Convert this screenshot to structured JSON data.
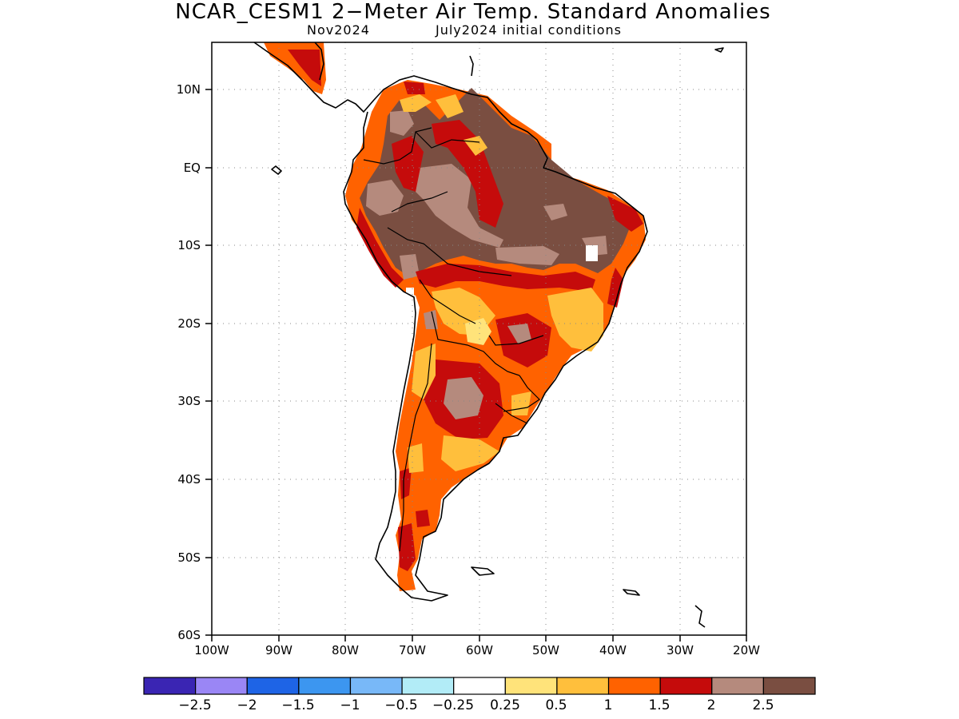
{
  "title": "NCAR_CESM1 2−Meter Air Temp. Standard Anomalies",
  "subtitle_left": "Nov2024",
  "subtitle_right": "July2024 initial conditions",
  "lat_ticks": [
    "10N",
    "EQ",
    "10S",
    "20S",
    "30S",
    "40S",
    "50S",
    "60S"
  ],
  "lon_ticks": [
    "100W",
    "90W",
    "80W",
    "70W",
    "60W",
    "50W",
    "40W",
    "30W",
    "20W"
  ],
  "colorbar": {
    "colors": [
      "#3a25b3",
      "#9a86f5",
      "#1e64e6",
      "#3c96f0",
      "#78b8f8",
      "#b2ecf7",
      "#ffffff",
      "#ffe37a",
      "#ffbf3c",
      "#ff6200",
      "#c50b0b",
      "#b58a7d",
      "#7a4e41"
    ],
    "labels": [
      "−2.5",
      "−2",
      "−1.5",
      "−1",
      "−0.5",
      "−0.25",
      "0.25",
      "0.5",
      "1",
      "1.5",
      "2",
      "2.5"
    ]
  },
  "legend_colors": {
    "above_2_5": "#7a4e41",
    "2_to_2_5": "#b58a7d",
    "1_5_to_2": "#c50b0b",
    "1_to_1_5": "#ff6200",
    "0_5_to_1": "#ffbf3c",
    "0_25_to_0_5": "#ffe37a"
  }
}
